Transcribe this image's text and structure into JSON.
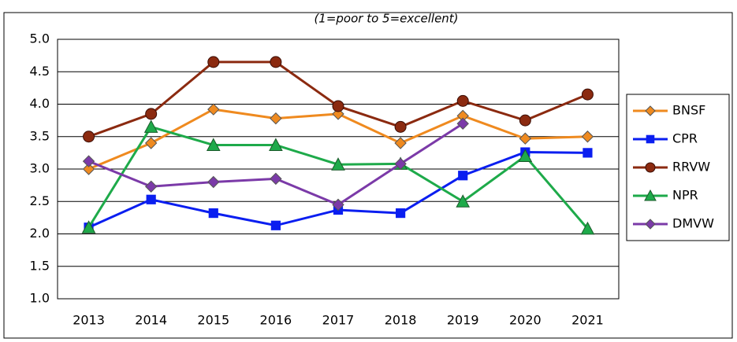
{
  "chart_data": {
    "type": "line",
    "subtitle": "(1=poor to 5=excellent)",
    "categories": [
      "2013",
      "2014",
      "2015",
      "2016",
      "2017",
      "2018",
      "2019",
      "2020",
      "2021"
    ],
    "series": [
      {
        "name": "BNSF",
        "color": "#ef8a1f",
        "marker": "diamond",
        "values": [
          3.0,
          3.4,
          3.92,
          3.78,
          3.85,
          3.4,
          3.82,
          3.47,
          3.5
        ]
      },
      {
        "name": "CPR",
        "color": "#0a1ef0",
        "marker": "square",
        "values": [
          2.1,
          2.53,
          2.32,
          2.13,
          2.37,
          2.32,
          2.9,
          3.26,
          3.25
        ]
      },
      {
        "name": "RRVW",
        "color": "#8b2a10",
        "marker": "circle",
        "values": [
          3.5,
          3.85,
          4.65,
          4.65,
          3.97,
          3.65,
          4.05,
          3.75,
          4.15
        ]
      },
      {
        "name": "NPR",
        "color": "#1eaa4a",
        "marker": "triangle",
        "values": [
          2.1,
          3.65,
          3.37,
          3.37,
          3.07,
          3.08,
          2.5,
          3.2,
          2.08
        ]
      },
      {
        "name": "DMVW",
        "color": "#7b3aa8",
        "marker": "diamond",
        "values": [
          3.12,
          2.73,
          2.8,
          2.85,
          2.45,
          3.08,
          3.7,
          null,
          null
        ]
      }
    ],
    "ylim": [
      1,
      5
    ],
    "yticks": [
      {
        "value": 1,
        "label": "1.0"
      },
      {
        "value": 1.5,
        "label": "1.5"
      },
      {
        "value": 2,
        "label": "2.0"
      },
      {
        "value": 2.5,
        "label": "2.5"
      },
      {
        "value": 3,
        "label": "3.0"
      },
      {
        "value": 3.5,
        "label": "3.5"
      },
      {
        "value": 4,
        "label": "4.0"
      },
      {
        "value": 4.5,
        "label": "4.5"
      },
      {
        "value": 5,
        "label": "5.0"
      }
    ],
    "grid": true,
    "legend": "right"
  }
}
